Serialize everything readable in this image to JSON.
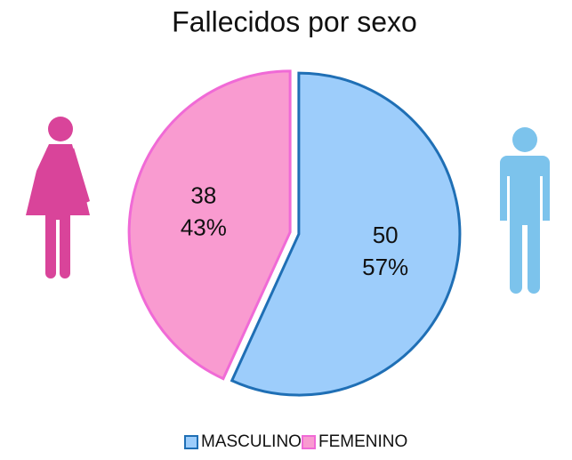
{
  "chart_data": {
    "type": "pie",
    "title": "Fallecidos por sexo",
    "categories": [
      "MASCULINO",
      "FEMENINO"
    ],
    "values": [
      50,
      38
    ],
    "shares": [
      {
        "value": 57,
        "label": "57%"
      },
      {
        "value": 43,
        "label": "43%"
      }
    ],
    "colors": [
      "#9dcdfb",
      "#f99bd0"
    ],
    "edge_colors": [
      "#1f6fb5",
      "#f06ad6"
    ],
    "legend": "bottom"
  }
}
